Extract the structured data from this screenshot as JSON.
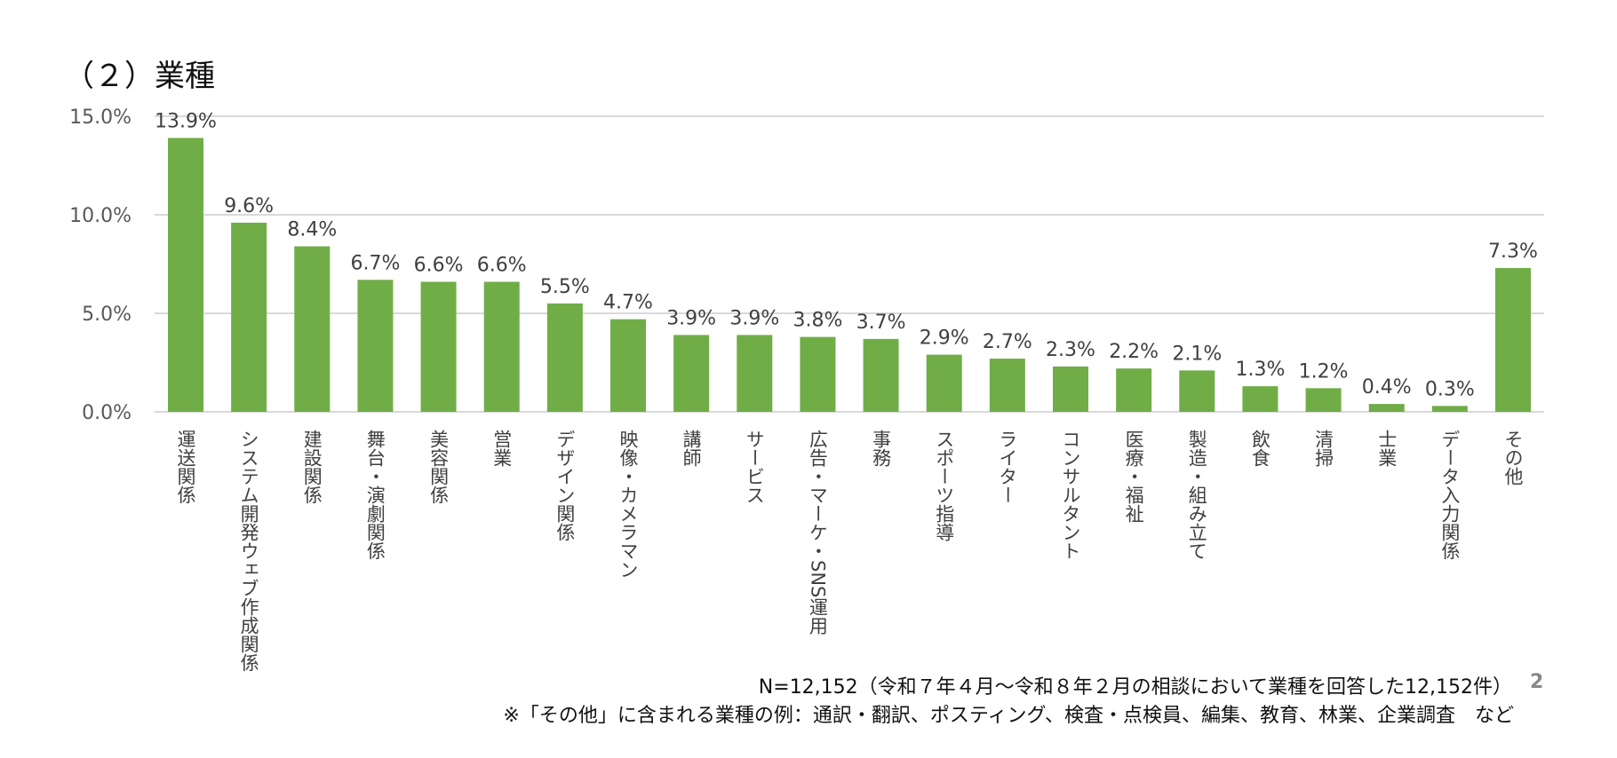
{
  "title": "（２）業種",
  "chart_data": {
    "type": "bar",
    "title": "",
    "xlabel": "",
    "ylabel": "",
    "ylim": [
      0,
      15
    ],
    "yticks": [
      "0.0%",
      "5.0%",
      "10.0%",
      "15.0%"
    ],
    "grid": true,
    "bar_color": "#70AD47",
    "categories": [
      "運送関係",
      "システム開発ウェブ作成関係",
      "建設関係",
      "舞台・演劇関係",
      "美容関係",
      "営業",
      "デザイン関係",
      "映像・カメラマン",
      "講師",
      "サービス",
      "広告・マーケ・SNS運用",
      "事務",
      "スポーツ指導",
      "ライター",
      "コンサルタント",
      "医療・福祉",
      "製造・組み立て",
      "飲食",
      "清掃",
      "士業",
      "データ入力関係",
      "その他"
    ],
    "values": [
      13.9,
      9.6,
      8.4,
      6.7,
      6.6,
      6.6,
      5.5,
      4.7,
      3.9,
      3.9,
      3.8,
      3.7,
      2.9,
      2.7,
      2.3,
      2.2,
      2.1,
      1.3,
      1.2,
      0.4,
      0.3,
      7.3
    ],
    "data_labels": [
      "13.9%",
      "9.6%",
      "8.4%",
      "6.7%",
      "6.6%",
      "6.6%",
      "5.5%",
      "4.7%",
      "3.9%",
      "3.9%",
      "3.8%",
      "3.7%",
      "2.9%",
      "2.7%",
      "2.3%",
      "2.2%",
      "2.1%",
      "1.3%",
      "1.2%",
      "0.4%",
      "0.3%",
      "7.3%"
    ]
  },
  "footnotes": {
    "sample": "N=12,152（令和７年４月～令和８年２月の相談において業種を回答した12,152件）",
    "other_examples": "※「その他」に含まれる業種の例：通訳・翻訳、ポスティング、検査・点検員、編集、教育、林業、企業調査　など"
  },
  "page_number": "2"
}
